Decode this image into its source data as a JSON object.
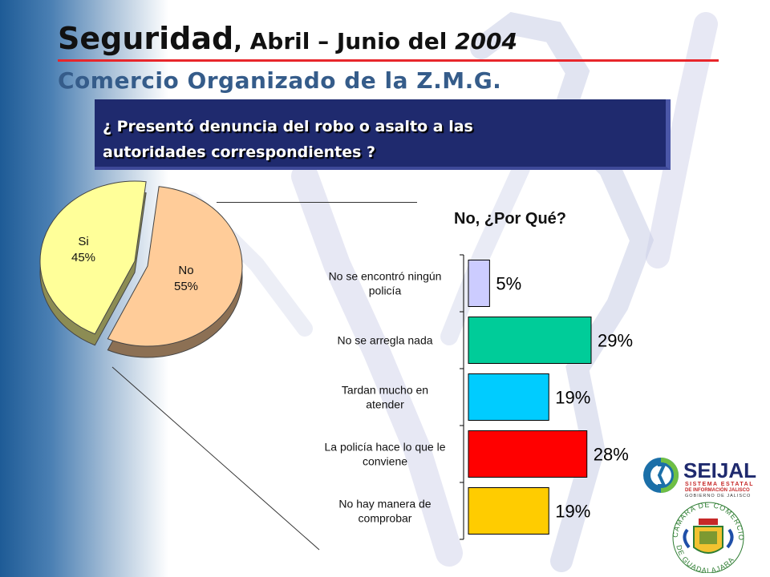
{
  "header": {
    "title_main": "Seguridad",
    "title_rest": ", Abril – Junio del ",
    "title_year": "2004",
    "subtitle": "Comercio Organizado de la Z.M.G."
  },
  "question": {
    "line1": "¿ Presentó denuncia del robo o asalto a las",
    "line2": "autoridades correspondientes ?"
  },
  "why_label": "No, ¿Por Qué?",
  "chart_data": [
    {
      "type": "pie",
      "categories": [
        "Si",
        "No"
      ],
      "values": [
        45,
        55
      ],
      "labels": [
        "45%",
        "55%"
      ],
      "colors": [
        "#ffff99",
        "#ffcc99"
      ]
    },
    {
      "type": "bar",
      "orientation": "horizontal",
      "title": "No, ¿Por Qué?",
      "categories": [
        [
          "No se encontró ningún",
          "policía"
        ],
        [
          "No se arregla nada"
        ],
        [
          "Tardan mucho en",
          "atender"
        ],
        [
          "La policía hace lo que le",
          "conviene"
        ],
        [
          "No hay manera de",
          "comprobar"
        ]
      ],
      "values": [
        5,
        29,
        19,
        28,
        19
      ],
      "labels": [
        "5%",
        "29%",
        "19%",
        "28%",
        "19%"
      ],
      "colors": [
        "#ccccff",
        "#00cc99",
        "#00ccff",
        "#ff0000",
        "#ffcc00"
      ],
      "xlim": [
        0,
        30
      ]
    }
  ],
  "logos": {
    "seijal_name": "SEIJAL",
    "seijal_line1": "SISTEMA ESTATAL",
    "seijal_line2": "DE INFORMACIÓN JALISCO",
    "seijal_line3": "GOBIERNO DE JALISCO",
    "camara_top": "CAMARA DE COMERCIO",
    "camara_bottom": "DE GUADALAJARA"
  }
}
